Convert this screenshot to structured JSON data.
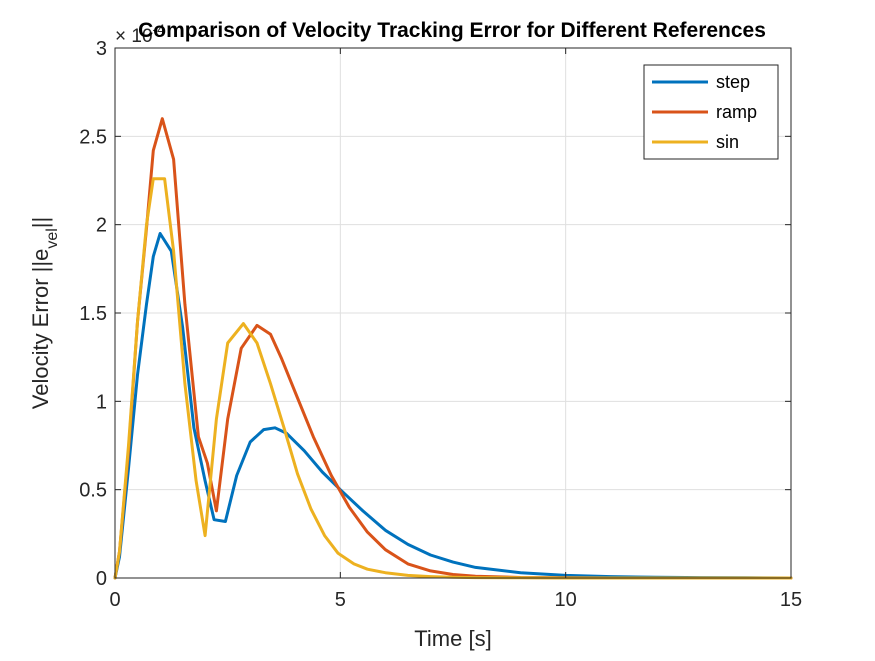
{
  "chart_data": {
    "type": "line",
    "title": "Comparison of Velocity Tracking Error for Different References",
    "xlabel": "Time [s]",
    "ylabel": {
      "main": "Velocity Error ||e",
      "subscript": "vel",
      "suffix": "||"
    },
    "y_exponent": {
      "prefix": "× 10",
      "power": "-4"
    },
    "xlim": [
      0,
      15
    ],
    "ylim": [
      0,
      3
    ],
    "x_ticks": [
      "0",
      "5",
      "10",
      "15"
    ],
    "y_ticks": [
      "0",
      "0.5",
      "1",
      "1.5",
      "2",
      "2.5",
      "3"
    ],
    "grid": true,
    "legend_position": "top-right",
    "series": [
      {
        "name": "step",
        "color": "#0072BD",
        "x": [
          0,
          0.1,
          0.3,
          0.5,
          0.7,
          0.85,
          1.0,
          1.25,
          1.5,
          1.75,
          2.0,
          2.2,
          2.45,
          2.7,
          3.0,
          3.3,
          3.55,
          3.8,
          4.2,
          4.6,
          5.0,
          5.5,
          6.0,
          6.5,
          7.0,
          7.5,
          8.0,
          9.0,
          10.0,
          11.0,
          12.0,
          13.0,
          14.0,
          15.0
        ],
        "values": [
          0,
          0.12,
          0.62,
          1.15,
          1.55,
          1.82,
          1.95,
          1.85,
          1.42,
          0.85,
          0.55,
          0.33,
          0.32,
          0.58,
          0.77,
          0.84,
          0.85,
          0.82,
          0.72,
          0.6,
          0.5,
          0.38,
          0.27,
          0.19,
          0.13,
          0.09,
          0.06,
          0.03,
          0.015,
          0.008,
          0.004,
          0.002,
          0.001,
          0
        ]
      },
      {
        "name": "ramp",
        "color": "#D95319",
        "x": [
          0,
          0.1,
          0.3,
          0.5,
          0.7,
          0.85,
          1.05,
          1.3,
          1.55,
          1.85,
          2.05,
          2.25,
          2.5,
          2.8,
          3.15,
          3.45,
          3.7,
          4.0,
          4.4,
          4.8,
          5.2,
          5.6,
          6.0,
          6.5,
          7.0,
          7.5,
          8.0,
          9.0,
          10.0,
          11.0,
          12.0,
          13.0,
          14.0,
          15.0
        ],
        "values": [
          0,
          0.15,
          0.72,
          1.45,
          1.98,
          2.42,
          2.6,
          2.37,
          1.55,
          0.8,
          0.65,
          0.38,
          0.9,
          1.3,
          1.43,
          1.38,
          1.24,
          1.05,
          0.8,
          0.58,
          0.4,
          0.26,
          0.16,
          0.08,
          0.04,
          0.02,
          0.01,
          0.003,
          0.001,
          0,
          0,
          0,
          0,
          0
        ]
      },
      {
        "name": "sin",
        "color": "#EDB120",
        "x": [
          0,
          0.1,
          0.3,
          0.5,
          0.7,
          0.85,
          0.95,
          1.1,
          1.3,
          1.55,
          1.8,
          2.0,
          2.25,
          2.5,
          2.85,
          3.15,
          3.45,
          3.75,
          4.05,
          4.35,
          4.65,
          4.95,
          5.3,
          5.6,
          6.0,
          6.5,
          7.0,
          7.5,
          8.0,
          9.0,
          10.0,
          11.0,
          13.0,
          15.0
        ],
        "values": [
          0,
          0.15,
          0.75,
          1.45,
          2.0,
          2.26,
          2.26,
          2.26,
          1.85,
          1.1,
          0.55,
          0.24,
          0.9,
          1.33,
          1.44,
          1.33,
          1.1,
          0.85,
          0.59,
          0.39,
          0.24,
          0.14,
          0.08,
          0.05,
          0.03,
          0.015,
          0.008,
          0.004,
          0.002,
          0.001,
          0,
          0,
          0,
          0
        ]
      }
    ]
  }
}
